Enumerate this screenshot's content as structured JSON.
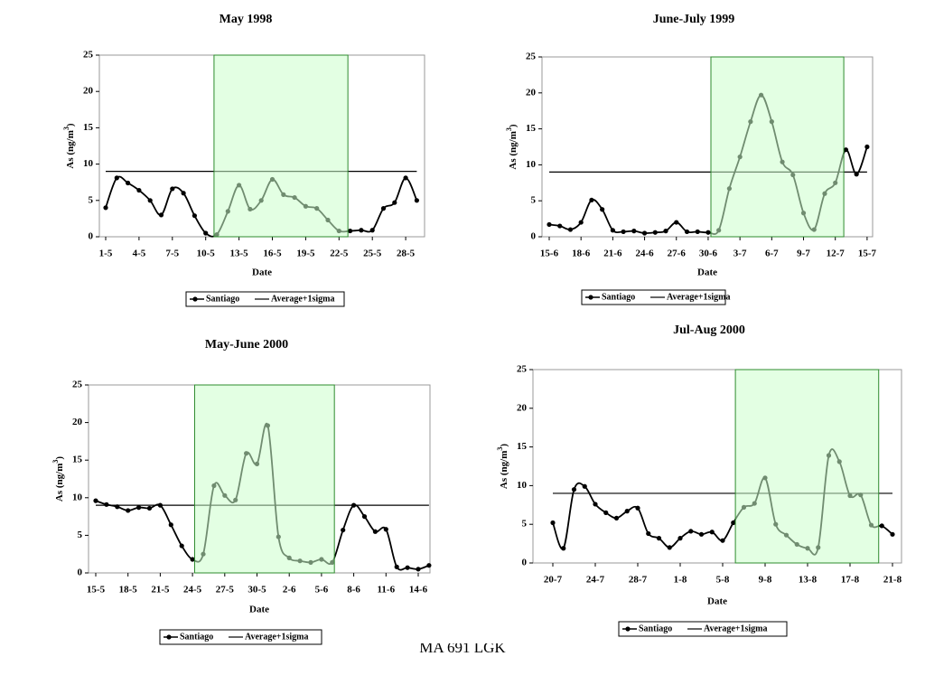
{
  "chart_data": [
    {
      "type": "line",
      "title": "May 1998",
      "xlabel": "Date",
      "ylabel": "As (ng/m",
      "ylabel_sup": "3",
      "ylabel_end": ")",
      "categories": [
        "1-5",
        null,
        null,
        "4-5",
        null,
        null,
        "7-5",
        null,
        null,
        "10-5",
        null,
        null,
        "13-5",
        null,
        null,
        "16-5",
        null,
        null,
        "19-5",
        null,
        null,
        "22-5",
        null,
        null,
        "25-5",
        null,
        null,
        "28-5",
        null
      ],
      "series": [
        {
          "name": "Santiago",
          "color": "#000000",
          "values": [
            4.0,
            8.1,
            7.4,
            6.4,
            5.0,
            3.0,
            6.6,
            6.0,
            2.9,
            0.5,
            0.3,
            3.5,
            7.1,
            3.8,
            5.0,
            7.9,
            5.8,
            5.4,
            4.2,
            3.9,
            2.3,
            0.8,
            0.8,
            0.9,
            0.9,
            3.9,
            4.7,
            8.1,
            5.0
          ]
        }
      ],
      "hline": {
        "name": "Average+1sigma",
        "value": 9,
        "color": "#000000"
      },
      "shade": [
        9.75,
        21.8
      ],
      "shade_color": "#ccffcc",
      "ylim": [
        0,
        25
      ],
      "yticks": [
        0,
        5,
        10,
        15,
        20,
        25
      ]
    },
    {
      "type": "line",
      "title": "June-July 1999",
      "xlabel": "Date",
      "ylabel": "As (ng/m",
      "ylabel_sup": "3",
      "ylabel_end": ")",
      "categories": [
        "15-6",
        null,
        null,
        "18-6",
        null,
        null,
        "21-6",
        null,
        null,
        "24-6",
        null,
        null,
        "27-6",
        null,
        null,
        "30-6",
        null,
        null,
        "3-7",
        null,
        null,
        "6-7",
        null,
        null,
        "9-7",
        null,
        null,
        "12-7",
        null,
        null,
        "15-7"
      ],
      "series": [
        {
          "name": "Santiago",
          "color": "#000000",
          "values": [
            1.7,
            1.5,
            1.0,
            2.0,
            5.1,
            3.8,
            0.9,
            0.7,
            0.8,
            0.5,
            0.6,
            0.8,
            2.0,
            0.7,
            0.7,
            0.6,
            0.9,
            6.7,
            11.1,
            16.0,
            19.7,
            16.0,
            10.4,
            8.6,
            3.3,
            1.0,
            6.0,
            7.5,
            12.1,
            8.7,
            12.5
          ]
        }
      ],
      "hline": {
        "name": "Average+1sigma",
        "value": 9,
        "color": "#000000"
      },
      "shade": [
        15.26,
        27.8
      ],
      "shade_color": "#ccffcc",
      "ylim": [
        0,
        25
      ],
      "yticks": [
        0,
        5,
        10,
        15,
        20,
        25
      ]
    },
    {
      "type": "line",
      "title": "May-June 2000",
      "xlabel": "Date",
      "ylabel": "As (ng/m",
      "ylabel_sup": "3",
      "ylabel_end": ")",
      "categories": [
        "15-5",
        null,
        null,
        "18-5",
        null,
        null,
        "21-5",
        null,
        null,
        "24-5",
        null,
        null,
        "27-5",
        null,
        null,
        "30-5",
        null,
        null,
        "2-6",
        null,
        null,
        "5-6",
        null,
        null,
        "8-6",
        null,
        null,
        "11-6",
        null,
        null,
        "14-6",
        null
      ],
      "series": [
        {
          "name": "Santiago",
          "color": "#000000",
          "values": [
            9.6,
            9.1,
            8.8,
            8.3,
            8.7,
            8.6,
            9.0,
            6.4,
            3.6,
            1.8,
            2.5,
            11.6,
            10.3,
            9.7,
            15.9,
            14.5,
            19.6,
            4.8,
            2.0,
            1.6,
            1.4,
            1.8,
            1.4,
            5.7,
            9.0,
            7.5,
            5.5,
            5.8,
            0.8,
            0.7,
            0.5,
            1.0
          ]
        }
      ],
      "hline": {
        "name": "Average+1sigma",
        "value": 9,
        "color": "#000000"
      },
      "shade": [
        9.2,
        22.2
      ],
      "shade_color": "#ccffcc",
      "ylim": [
        0,
        25
      ],
      "yticks": [
        0,
        5,
        10,
        15,
        20,
        25
      ]
    },
    {
      "type": "line",
      "title": "Jul-Aug 2000",
      "xlabel": "Date",
      "ylabel": "As (ng/m",
      "ylabel_sup": "3",
      "ylabel_end": ")",
      "categories": [
        "20-7",
        null,
        null,
        null,
        "24-7",
        null,
        null,
        null,
        "28-7",
        null,
        null,
        null,
        "1-8",
        null,
        null,
        null,
        "5-8",
        null,
        null,
        null,
        "9-8",
        null,
        null,
        null,
        "13-8",
        null,
        null,
        null,
        "17-8",
        null,
        null,
        null,
        "21-8"
      ],
      "series": [
        {
          "name": "Santiago",
          "color": "#000000",
          "values": [
            5.2,
            1.9,
            9.5,
            9.9,
            7.6,
            6.5,
            5.8,
            6.7,
            7.1,
            3.8,
            3.2,
            2.0,
            3.2,
            4.1,
            3.7,
            4.0,
            2.9,
            5.2,
            7.2,
            7.7,
            11.0,
            5.0,
            3.6,
            2.4,
            1.9,
            2.0,
            13.9,
            13.1,
            8.7,
            8.8,
            4.9,
            4.8,
            3.7
          ]
        }
      ],
      "hline": {
        "name": "Average+1sigma",
        "value": 9,
        "color": "#000000"
      },
      "shade": [
        17.2,
        30.7
      ],
      "shade_color": "#ccffcc",
      "ylim": [
        0,
        25
      ],
      "yticks": [
        0,
        5,
        10,
        15,
        20,
        25
      ]
    }
  ],
  "footer": "MA 691 LGK"
}
